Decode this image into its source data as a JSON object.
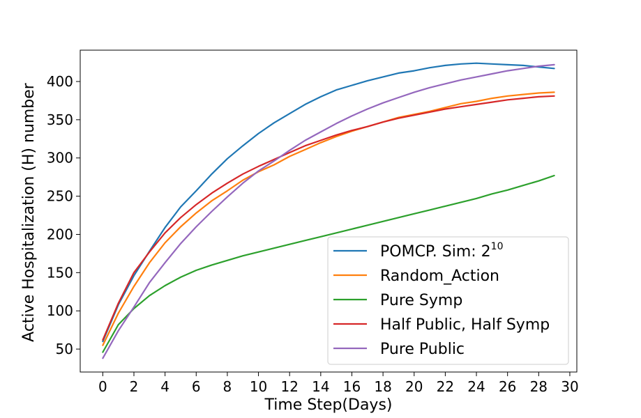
{
  "chart_data": {
    "type": "line",
    "title": "",
    "xlabel": "Time Step(Days)",
    "ylabel": "Active Hospitalization (H) number",
    "xlim": [
      -1.45,
      30.45
    ],
    "ylim": [
      20,
      441
    ],
    "xticks": [
      0,
      2,
      4,
      6,
      8,
      10,
      12,
      14,
      16,
      18,
      20,
      22,
      24,
      26,
      28,
      30
    ],
    "yticks": [
      50,
      100,
      150,
      200,
      250,
      300,
      350,
      400
    ],
    "x": [
      0,
      1,
      2,
      3,
      4,
      5,
      6,
      7,
      8,
      9,
      10,
      11,
      12,
      13,
      14,
      15,
      16,
      17,
      18,
      19,
      20,
      21,
      22,
      23,
      24,
      25,
      26,
      27,
      28,
      29
    ],
    "legend_position": "lower right",
    "grid": false,
    "series": [
      {
        "name": "POMCP. Sim: 2",
        "name_sup": "10",
        "color": "#1f77b4",
        "values": [
          60,
          108,
          146,
          178,
          209,
          236,
          257,
          279,
          299,
          316,
          332,
          346,
          358,
          370,
          380,
          389,
          395,
          401,
          406,
          411,
          414,
          418,
          421,
          423,
          424,
          423,
          422,
          421,
          419,
          417
        ]
      },
      {
        "name": "Random_Action",
        "color": "#ff7f0e",
        "values": [
          55,
          97,
          132,
          163,
          189,
          210,
          228,
          244,
          257,
          271,
          282,
          291,
          302,
          311,
          320,
          328,
          335,
          341,
          347,
          353,
          357,
          361,
          366,
          371,
          374,
          378,
          381,
          383,
          385,
          386
        ]
      },
      {
        "name": "Pure Symp",
        "color": "#2ca02c",
        "values": [
          46,
          82,
          103,
          120,
          133,
          144,
          153,
          160,
          166,
          172,
          177,
          182,
          187,
          192,
          197,
          202,
          207,
          212,
          217,
          222,
          227,
          232,
          237,
          242,
          247,
          253,
          258,
          264,
          270,
          277
        ]
      },
      {
        "name": "Half Public, Half Symp",
        "color": "#d62728",
        "values": [
          62,
          110,
          150,
          177,
          202,
          222,
          239,
          254,
          267,
          279,
          289,
          298,
          307,
          316,
          323,
          330,
          336,
          341,
          347,
          352,
          356,
          360,
          364,
          367,
          370,
          373,
          376,
          378,
          380,
          381
        ]
      },
      {
        "name": "Pure Public",
        "color": "#9467bd",
        "values": [
          38,
          74,
          105,
          137,
          163,
          188,
          210,
          230,
          249,
          267,
          283,
          296,
          310,
          323,
          334,
          345,
          355,
          364,
          372,
          379,
          386,
          392,
          397,
          402,
          406,
          410,
          414,
          417,
          420,
          422
        ]
      }
    ]
  }
}
